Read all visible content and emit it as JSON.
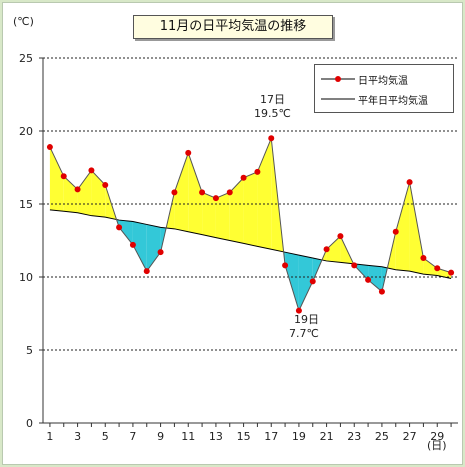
{
  "chart_data": {
    "type": "line",
    "title": "11月の日平均気温の推移",
    "y_unit": "(℃)",
    "x_unit": "(日)",
    "ylim": [
      0,
      25
    ],
    "y_ticks": [
      0,
      5,
      10,
      15,
      20,
      25
    ],
    "xlim": [
      0.5,
      30.5
    ],
    "x_ticks": [
      1,
      3,
      5,
      7,
      9,
      11,
      13,
      15,
      17,
      19,
      21,
      23,
      25,
      27,
      29
    ],
    "grid": true,
    "legend": "top-right",
    "x": [
      1,
      2,
      3,
      4,
      5,
      6,
      7,
      8,
      9,
      10,
      11,
      12,
      13,
      14,
      15,
      16,
      17,
      18,
      19,
      20,
      21,
      22,
      23,
      24,
      25,
      26,
      27,
      28,
      29,
      30
    ],
    "series": [
      {
        "name": "日平均気温",
        "values": [
          18.9,
          16.9,
          16.0,
          17.3,
          16.3,
          13.4,
          12.2,
          10.4,
          11.7,
          15.8,
          18.5,
          15.8,
          15.4,
          15.8,
          16.8,
          17.2,
          19.5,
          10.8,
          7.7,
          9.7,
          11.9,
          12.8,
          10.8,
          9.8,
          9.0,
          13.1,
          16.5,
          11.3,
          10.6,
          10.3
        ],
        "color": "#e00000"
      },
      {
        "name": "平年日平均気温",
        "values": [
          14.6,
          14.5,
          14.4,
          14.2,
          14.1,
          13.9,
          13.8,
          13.6,
          13.4,
          13.3,
          13.1,
          12.9,
          12.7,
          12.5,
          12.3,
          12.1,
          11.9,
          11.7,
          11.5,
          11.3,
          11.1,
          11.0,
          10.9,
          10.8,
          10.7,
          10.5,
          10.4,
          10.2,
          10.1,
          9.9
        ],
        "color": "#000000"
      }
    ],
    "fill_above_color": "#ffff33",
    "fill_below_color": "#33c8d8",
    "annotations": [
      {
        "day": "17日",
        "value": "19.5℃"
      },
      {
        "day": "19日",
        "value": "7.7℃"
      }
    ]
  }
}
